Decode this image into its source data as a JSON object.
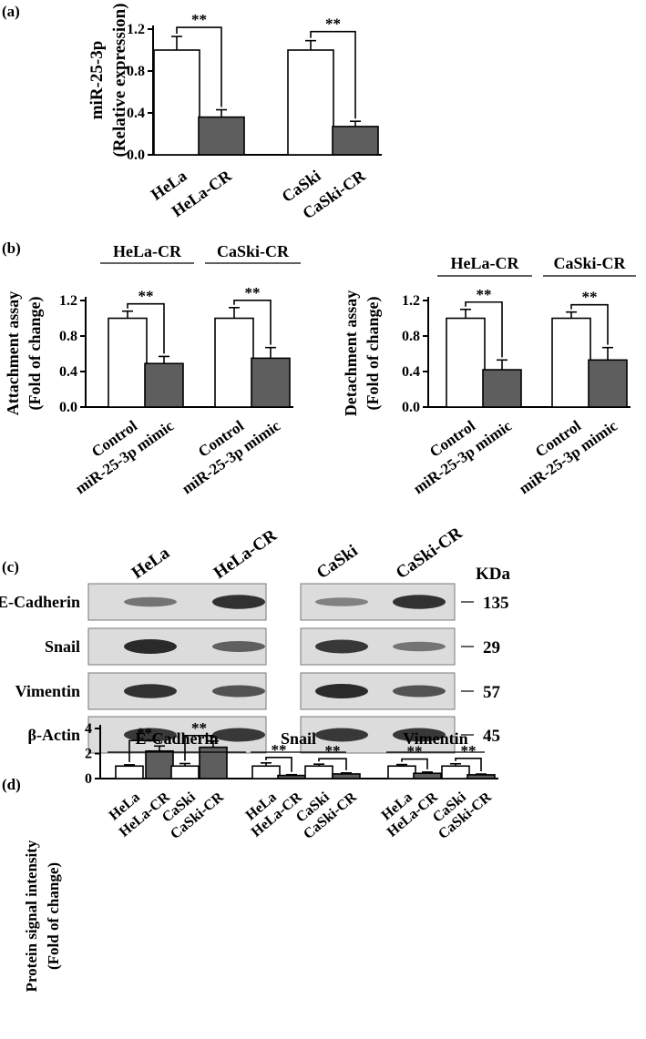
{
  "colors": {
    "control": "#ffffff",
    "treated": "#5e5e5e",
    "axis": "#000000",
    "blot_bg": "#dcdcdc",
    "band": "#2a2a2a"
  },
  "panels": {
    "a": {
      "letter": "(a)",
      "ylabel_line1": "miR-25-3p",
      "ylabel_line2": "(Relative expression)"
    },
    "b": {
      "letter": "(b)",
      "left": {
        "ylabel_line1": "Attachment assay",
        "ylabel_line2": "(Fold of change)"
      },
      "right": {
        "ylabel_line1": "Detachment assay",
        "ylabel_line2": "(Fold of change)"
      }
    },
    "c": {
      "letter": "(c)",
      "lane_labels_left": [
        "HeLa",
        "HeLa-CR"
      ],
      "lane_labels_right": [
        "CaSki",
        "CaSki-CR"
      ],
      "kda_header": "KDa",
      "rows": [
        {
          "name": "E-Cadherin",
          "kda": "135",
          "intensity": [
            0.45,
            0.95,
            0.35,
            0.95
          ]
        },
        {
          "name": "Snail",
          "kda": "29",
          "intensity": [
            1.0,
            0.6,
            0.9,
            0.45
          ]
        },
        {
          "name": "Vimentin",
          "kda": "57",
          "intensity": [
            0.95,
            0.7,
            1.0,
            0.7
          ]
        },
        {
          "name": "β-Actin",
          "kda": "45",
          "intensity": [
            0.9,
            0.9,
            0.9,
            0.9
          ]
        }
      ]
    },
    "d": {
      "letter": "(d)",
      "ylabel_line1": "Protein signal intensity",
      "ylabel_line2": "(Fold of change)"
    }
  },
  "chart_data": [
    {
      "panel": "a",
      "type": "bar",
      "categories": [
        "HeLa",
        "HeLa-CR",
        "CaSki",
        "CaSki-CR"
      ],
      "values": [
        1.0,
        0.36,
        1.0,
        0.27
      ],
      "errors": [
        0.13,
        0.07,
        0.09,
        0.05
      ],
      "ylim": [
        0,
        1.2
      ],
      "yticks": [
        "0.0",
        "0.4",
        "0.8",
        "1.2"
      ],
      "significance": [
        {
          "pair": [
            0,
            1
          ],
          "label": "**"
        },
        {
          "pair": [
            2,
            3
          ],
          "label": "**"
        }
      ],
      "grid": false
    },
    {
      "panel": "b-left",
      "type": "bar",
      "group_labels": [
        "HeLa-CR",
        "CaSki-CR"
      ],
      "categories": [
        "Control",
        "miR-25-3p mimic",
        "Control",
        "miR-25-3p mimic"
      ],
      "values": [
        1.0,
        0.49,
        1.0,
        0.55
      ],
      "errors": [
        0.08,
        0.08,
        0.12,
        0.12
      ],
      "ylim": [
        0,
        1.2
      ],
      "yticks": [
        "0.0",
        "0.4",
        "0.8",
        "1.2"
      ],
      "significance": [
        {
          "pair": [
            0,
            1
          ],
          "label": "**"
        },
        {
          "pair": [
            2,
            3
          ],
          "label": "**"
        }
      ],
      "grid": false
    },
    {
      "panel": "b-right",
      "type": "bar",
      "group_labels": [
        "HeLa-CR",
        "CaSki-CR"
      ],
      "categories": [
        "Control",
        "miR-25-3p mimic",
        "Control",
        "miR-25-3p mimic"
      ],
      "values": [
        1.0,
        0.42,
        1.0,
        0.53
      ],
      "errors": [
        0.1,
        0.11,
        0.07,
        0.14
      ],
      "ylim": [
        0,
        1.2
      ],
      "yticks": [
        "0.0",
        "0.4",
        "0.8",
        "1.2"
      ],
      "significance": [
        {
          "pair": [
            0,
            1
          ],
          "label": "**"
        },
        {
          "pair": [
            2,
            3
          ],
          "label": "**"
        }
      ],
      "grid": false
    },
    {
      "panel": "d",
      "type": "bar",
      "group_labels": [
        "E-Cadherin",
        "Snail",
        "Vimentin"
      ],
      "categories": [
        "HeLa",
        "HeLa-CR",
        "CaSki",
        "CaSki-CR",
        "HeLa",
        "HeLa-CR",
        "CaSki",
        "CaSki-CR",
        "HeLa",
        "HeLa-CR",
        "CaSki",
        "CaSki-CR"
      ],
      "values": [
        1.0,
        2.2,
        1.0,
        2.5,
        1.0,
        0.25,
        1.0,
        0.37,
        1.0,
        0.42,
        1.0,
        0.3
      ],
      "errors": [
        0.1,
        0.4,
        0.2,
        0.5,
        0.25,
        0.06,
        0.15,
        0.08,
        0.12,
        0.1,
        0.18,
        0.06
      ],
      "ylim": [
        0,
        4
      ],
      "yticks": [
        "0",
        "2",
        "4"
      ],
      "significance": [
        {
          "pair": [
            0,
            1
          ],
          "label": "**"
        },
        {
          "pair": [
            2,
            3
          ],
          "label": "**"
        },
        {
          "pair": [
            4,
            5
          ],
          "label": "**"
        },
        {
          "pair": [
            6,
            7
          ],
          "label": "**"
        },
        {
          "pair": [
            8,
            9
          ],
          "label": "**"
        },
        {
          "pair": [
            10,
            11
          ],
          "label": "**"
        }
      ],
      "grid": false
    }
  ]
}
